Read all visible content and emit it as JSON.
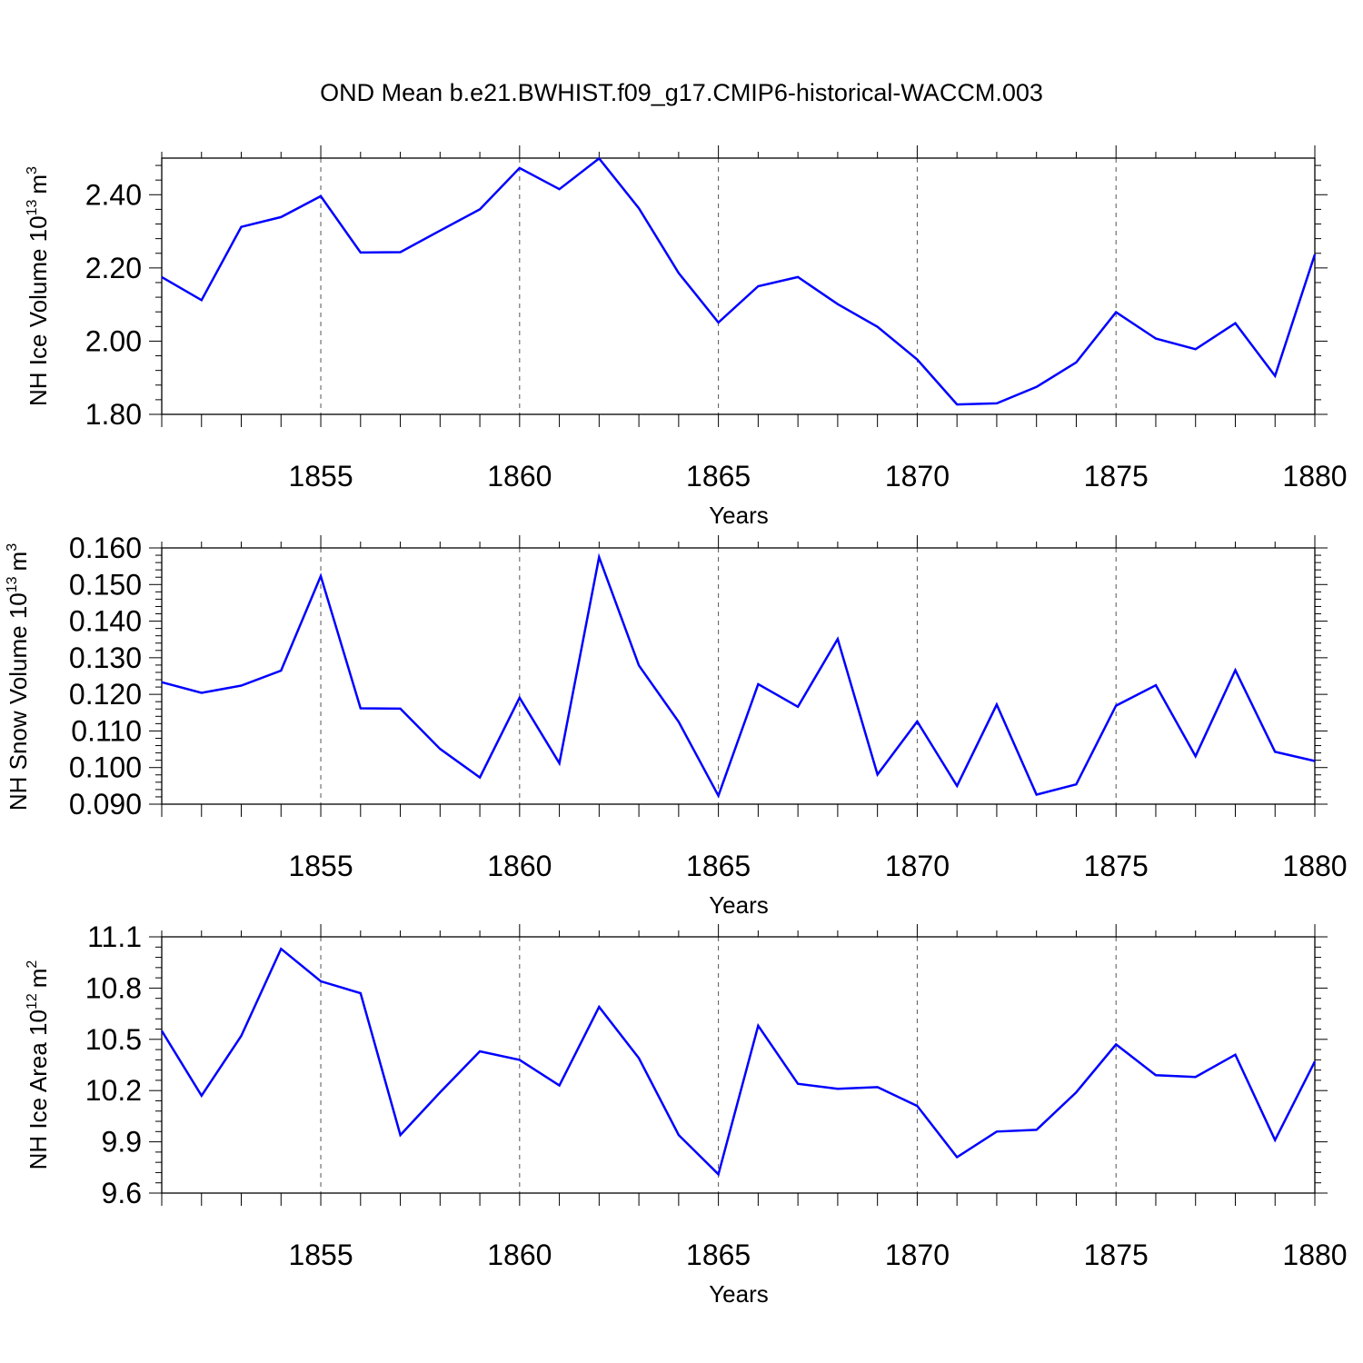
{
  "chart_data": [
    {
      "type": "line",
      "title": "OND Mean b.e21.BWHIST.f09_g17.CMIP6-historical-WACCM.003",
      "ylabel_main": "NH Ice Volume 10",
      "ylabel_exp": "13",
      "ylabel_unit": "m",
      "ylabel_unit_exp": "3",
      "xlabel": "Years",
      "xlim": [
        1851,
        1880
      ],
      "ylim": [
        1.8,
        2.5
      ],
      "xticks": [
        "1855",
        "1860",
        "1865",
        "1870",
        "1875",
        "1880"
      ],
      "yticks": [
        "1.80",
        "2.00",
        "2.20",
        "2.40"
      ],
      "grid": "vertical dashed at major x ticks",
      "color": "#0000ff",
      "x": [
        1851,
        1852,
        1853,
        1854,
        1855,
        1856,
        1857,
        1858,
        1859,
        1860,
        1861,
        1862,
        1863,
        1864,
        1865,
        1866,
        1867,
        1868,
        1869,
        1870,
        1871,
        1872,
        1873,
        1874,
        1875,
        1876,
        1877,
        1878,
        1879,
        1880
      ],
      "y": [
        2.175,
        2.112,
        2.312,
        2.339,
        2.396,
        2.242,
        2.243,
        2.302,
        2.36,
        2.473,
        2.415,
        2.499,
        2.363,
        2.186,
        2.051,
        2.15,
        2.175,
        2.101,
        2.039,
        1.95,
        1.827,
        1.83,
        1.875,
        1.942,
        2.079,
        2.007,
        1.978,
        2.049,
        1.905,
        2.237
      ]
    },
    {
      "type": "line",
      "ylabel_main": "NH Snow Volume 10",
      "ylabel_exp": "13",
      "ylabel_unit": "m",
      "ylabel_unit_exp": "3",
      "xlabel": "Years",
      "xlim": [
        1851,
        1880
      ],
      "ylim": [
        0.09,
        0.16
      ],
      "xticks": [
        "1855",
        "1860",
        "1865",
        "1870",
        "1875",
        "1880"
      ],
      "yticks": [
        "0.090",
        "0.100",
        "0.110",
        "0.120",
        "0.130",
        "0.140",
        "0.150",
        "0.160"
      ],
      "grid": "vertical dashed at major x ticks",
      "color": "#0000ff",
      "x": [
        1851,
        1852,
        1853,
        1854,
        1855,
        1856,
        1857,
        1858,
        1859,
        1860,
        1861,
        1862,
        1863,
        1864,
        1865,
        1866,
        1867,
        1868,
        1869,
        1870,
        1871,
        1872,
        1873,
        1874,
        1875,
        1876,
        1877,
        1878,
        1879,
        1880
      ],
      "y": [
        0.1233,
        0.1204,
        0.1224,
        0.1265,
        0.1523,
        0.1162,
        0.1161,
        0.1051,
        0.0973,
        0.1191,
        0.1012,
        0.1575,
        0.1279,
        0.1125,
        0.0923,
        0.1228,
        0.1166,
        0.1351,
        0.0981,
        0.1126,
        0.095,
        0.1172,
        0.0926,
        0.0954,
        0.1169,
        0.1225,
        0.1031,
        0.1266,
        0.1043,
        0.1018
      ]
    },
    {
      "type": "line",
      "ylabel_main": "NH Ice Area 10",
      "ylabel_exp": "12",
      "ylabel_unit": "m",
      "ylabel_unit_exp": "2",
      "xlabel": "Years",
      "xlim": [
        1851,
        1880
      ],
      "ylim": [
        9.6,
        11.1
      ],
      "xticks": [
        "1855",
        "1860",
        "1865",
        "1870",
        "1875",
        "1880"
      ],
      "yticks": [
        "9.6",
        "9.9",
        "10.2",
        "10.5",
        "10.8",
        "11.1"
      ],
      "grid": "vertical dashed at major x ticks",
      "color": "#0000ff",
      "x": [
        1851,
        1852,
        1853,
        1854,
        1855,
        1856,
        1857,
        1858,
        1859,
        1860,
        1861,
        1862,
        1863,
        1864,
        1865,
        1866,
        1867,
        1868,
        1869,
        1870,
        1871,
        1872,
        1873,
        1874,
        1875,
        1876,
        1877,
        1878,
        1879,
        1880
      ],
      "y": [
        10.55,
        10.17,
        10.52,
        11.03,
        10.84,
        10.77,
        9.94,
        10.19,
        10.43,
        10.38,
        10.23,
        10.69,
        10.39,
        9.94,
        9.71,
        10.58,
        10.24,
        10.21,
        10.22,
        10.11,
        9.81,
        9.96,
        9.97,
        10.19,
        10.47,
        10.29,
        10.28,
        10.41,
        9.91,
        10.37
      ]
    }
  ]
}
